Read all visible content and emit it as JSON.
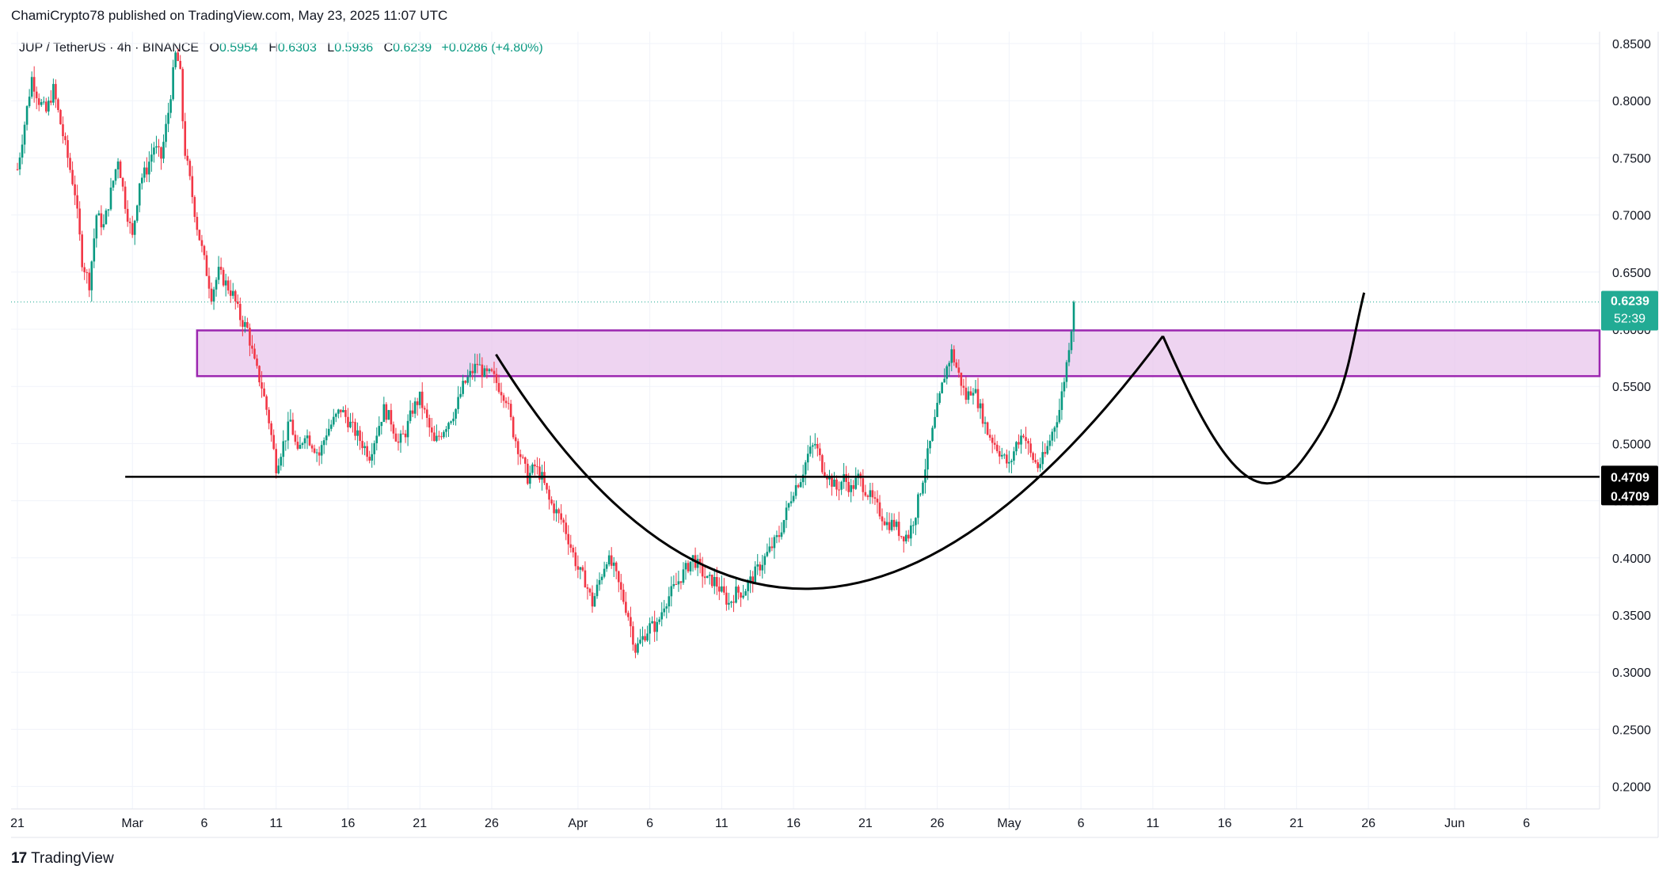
{
  "header": {
    "published_by": "ChamiCrypto78 published on TradingView.com, May 23, 2025 11:07 UTC"
  },
  "legend": {
    "symbol": "JUP / TetherUS · 4h · BINANCE",
    "open_label": "O",
    "open": "0.5954",
    "high_label": "H",
    "high": "0.6303",
    "low_label": "L",
    "low": "0.5936",
    "close_label": "C",
    "close": "0.6239",
    "change": "+0.0286 (+4.80%)"
  },
  "footer": {
    "brand": "TradingView",
    "logo_glyph": "17"
  },
  "chart_data": {
    "type": "candlestick",
    "symbol": "JUP / TetherUS",
    "interval": "4h",
    "exchange": "BINANCE",
    "ylim": [
      0.19,
      0.86
    ],
    "y_ticks": [
      "0.8500",
      "0.8000",
      "0.7500",
      "0.7000",
      "0.6500",
      "0.6000",
      "0.5500",
      "0.5000",
      "0.4500",
      "0.4000",
      "0.3500",
      "0.3000",
      "0.2500",
      "0.2000"
    ],
    "x_ticks": [
      {
        "label": "21",
        "day": 0
      },
      {
        "label": "Mar",
        "day": 8
      },
      {
        "label": "6",
        "day": 13
      },
      {
        "label": "11",
        "day": 18
      },
      {
        "label": "16",
        "day": 23
      },
      {
        "label": "21",
        "day": 28
      },
      {
        "label": "26",
        "day": 33
      },
      {
        "label": "Apr",
        "day": 39
      },
      {
        "label": "6",
        "day": 44
      },
      {
        "label": "11",
        "day": 49
      },
      {
        "label": "16",
        "day": 54
      },
      {
        "label": "21",
        "day": 59
      },
      {
        "label": "26",
        "day": 64
      },
      {
        "label": "May",
        "day": 69
      },
      {
        "label": "6",
        "day": 74
      },
      {
        "label": "11",
        "day": 79
      },
      {
        "label": "16",
        "day": 84
      },
      {
        "label": "21",
        "day": 89
      },
      {
        "label": "26",
        "day": 94
      },
      {
        "label": "Jun",
        "day": 100
      },
      {
        "label": "6",
        "day": 105
      }
    ],
    "last_price": "0.6239",
    "countdown": "52:39",
    "support_level": "0.4709",
    "support_level_2": "0.4709",
    "resistance_zone": [
      0.559,
      0.599
    ],
    "colors": {
      "up": "#089981",
      "down": "#f23645",
      "zone_fill": "#e8c6ec",
      "zone_border": "#9c27b0",
      "lines": "#000000",
      "last_price_bg": "#22ab94",
      "level_bg": "#000000"
    },
    "price_path": [
      [
        0,
        0.74
      ],
      [
        0.5,
        0.78
      ],
      [
        1,
        0.82
      ],
      [
        1.5,
        0.8
      ],
      [
        2,
        0.79
      ],
      [
        2.5,
        0.81
      ],
      [
        3,
        0.78
      ],
      [
        3.5,
        0.75
      ],
      [
        4,
        0.72
      ],
      [
        4.5,
        0.66
      ],
      [
        5,
        0.64
      ],
      [
        5.5,
        0.7
      ],
      [
        6,
        0.69
      ],
      [
        6.5,
        0.72
      ],
      [
        7,
        0.75
      ],
      [
        7.5,
        0.71
      ],
      [
        8,
        0.68
      ],
      [
        8.5,
        0.73
      ],
      [
        9,
        0.74
      ],
      [
        9.5,
        0.76
      ],
      [
        10,
        0.75
      ],
      [
        10.5,
        0.79
      ],
      [
        11,
        0.84
      ],
      [
        11.3,
        0.83
      ],
      [
        11.6,
        0.76
      ],
      [
        12,
        0.73
      ],
      [
        12.5,
        0.69
      ],
      [
        13,
        0.66
      ],
      [
        13.5,
        0.63
      ],
      [
        14,
        0.65
      ],
      [
        14.5,
        0.64
      ],
      [
        15,
        0.63
      ],
      [
        15.5,
        0.61
      ],
      [
        16,
        0.6
      ],
      [
        16.5,
        0.57
      ],
      [
        17,
        0.55
      ],
      [
        17.5,
        0.52
      ],
      [
        18,
        0.48
      ],
      [
        18.5,
        0.5
      ],
      [
        19,
        0.52
      ],
      [
        19.5,
        0.49
      ],
      [
        20,
        0.51
      ],
      [
        20.5,
        0.5
      ],
      [
        21,
        0.49
      ],
      [
        21.5,
        0.51
      ],
      [
        22,
        0.52
      ],
      [
        22.5,
        0.53
      ],
      [
        23,
        0.52
      ],
      [
        23.5,
        0.51
      ],
      [
        24,
        0.5
      ],
      [
        24.5,
        0.49
      ],
      [
        25,
        0.51
      ],
      [
        25.5,
        0.53
      ],
      [
        26,
        0.52
      ],
      [
        26.5,
        0.5
      ],
      [
        27,
        0.51
      ],
      [
        27.5,
        0.53
      ],
      [
        28,
        0.54
      ],
      [
        28.5,
        0.52
      ],
      [
        29,
        0.5
      ],
      [
        29.5,
        0.51
      ],
      [
        30,
        0.52
      ],
      [
        30.5,
        0.53
      ],
      [
        31,
        0.55
      ],
      [
        31.5,
        0.56
      ],
      [
        32,
        0.57
      ],
      [
        32.5,
        0.56
      ],
      [
        33,
        0.56
      ],
      [
        33.5,
        0.55
      ],
      [
        34,
        0.54
      ],
      [
        34.5,
        0.51
      ],
      [
        35,
        0.49
      ],
      [
        35.5,
        0.47
      ],
      [
        36,
        0.48
      ],
      [
        36.5,
        0.47
      ],
      [
        37,
        0.45
      ],
      [
        37.5,
        0.44
      ],
      [
        38,
        0.43
      ],
      [
        38.5,
        0.41
      ],
      [
        39,
        0.39
      ],
      [
        39.5,
        0.38
      ],
      [
        40,
        0.36
      ],
      [
        40.5,
        0.38
      ],
      [
        41,
        0.4
      ],
      [
        41.5,
        0.39
      ],
      [
        42,
        0.37
      ],
      [
        42.5,
        0.35
      ],
      [
        43,
        0.32
      ],
      [
        43.5,
        0.33
      ],
      [
        44,
        0.34
      ],
      [
        44.5,
        0.34
      ],
      [
        45,
        0.36
      ],
      [
        45.5,
        0.37
      ],
      [
        46,
        0.38
      ],
      [
        46.5,
        0.39
      ],
      [
        47,
        0.4
      ],
      [
        47.5,
        0.39
      ],
      [
        48,
        0.38
      ],
      [
        48.5,
        0.38
      ],
      [
        49,
        0.37
      ],
      [
        49.5,
        0.36
      ],
      [
        50,
        0.37
      ],
      [
        50.5,
        0.37
      ],
      [
        51,
        0.38
      ],
      [
        51.5,
        0.39
      ],
      [
        52,
        0.4
      ],
      [
        52.5,
        0.41
      ],
      [
        53,
        0.42
      ],
      [
        53.5,
        0.44
      ],
      [
        54,
        0.46
      ],
      [
        54.5,
        0.47
      ],
      [
        55,
        0.49
      ],
      [
        55.5,
        0.5
      ],
      [
        56,
        0.48
      ],
      [
        56.5,
        0.47
      ],
      [
        57,
        0.46
      ],
      [
        57.5,
        0.47
      ],
      [
        58,
        0.46
      ],
      [
        58.5,
        0.47
      ],
      [
        59,
        0.46
      ],
      [
        59.5,
        0.45
      ],
      [
        60,
        0.44
      ],
      [
        60.5,
        0.43
      ],
      [
        61,
        0.43
      ],
      [
        61.5,
        0.42
      ],
      [
        62,
        0.42
      ],
      [
        62.5,
        0.44
      ],
      [
        63,
        0.47
      ],
      [
        63.5,
        0.5
      ],
      [
        64,
        0.53
      ],
      [
        64.5,
        0.56
      ],
      [
        65,
        0.58
      ],
      [
        65.5,
        0.56
      ],
      [
        66,
        0.54
      ],
      [
        66.5,
        0.55
      ],
      [
        67,
        0.53
      ],
      [
        67.5,
        0.51
      ],
      [
        68,
        0.5
      ],
      [
        68.5,
        0.49
      ],
      [
        69,
        0.48
      ],
      [
        69.5,
        0.5
      ],
      [
        70,
        0.51
      ],
      [
        70.5,
        0.49
      ],
      [
        71,
        0.48
      ],
      [
        71.5,
        0.49
      ],
      [
        72,
        0.51
      ],
      [
        72.5,
        0.53
      ],
      [
        73,
        0.57
      ],
      [
        73.3,
        0.6
      ],
      [
        73.6,
        0.62
      ]
    ]
  }
}
